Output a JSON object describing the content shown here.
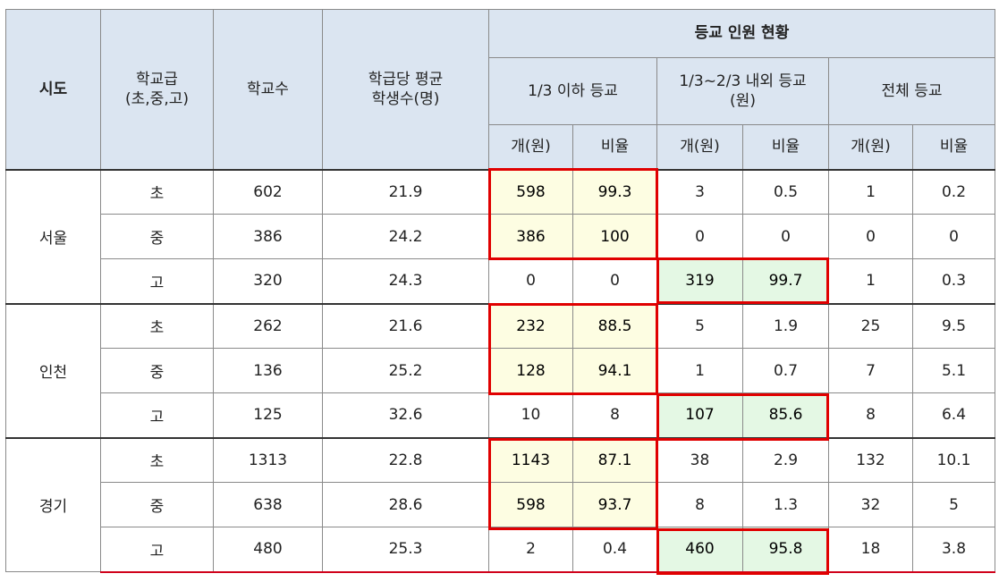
{
  "header": {
    "sido": "시도",
    "school_level": "학교급\n(초,중,고)",
    "school_count": "학교수",
    "avg_students": "학급당 평균\n학생수(명)",
    "attendance_status": "등교 인원 현황",
    "group_1": "1/3 이하 등교",
    "group_2": "1/3~2/3 내외 등교\n(원)",
    "group_3": "전체 등교",
    "sub_count": "개(원)",
    "sub_ratio": "비율"
  },
  "rows": [
    {
      "region": "서울",
      "level": "초",
      "schools": "602",
      "avg": "21.9",
      "c1": "598",
      "r1": "99.3",
      "c2": "3",
      "r2": "0.5",
      "c3": "1",
      "r3": "0.2"
    },
    {
      "region": "",
      "level": "중",
      "schools": "386",
      "avg": "24.2",
      "c1": "386",
      "r1": "100",
      "c2": "0",
      "r2": "0",
      "c3": "0",
      "r3": "0"
    },
    {
      "region": "",
      "level": "고",
      "schools": "320",
      "avg": "24.3",
      "c1": "0",
      "r1": "0",
      "c2": "319",
      "r2": "99.7",
      "c3": "1",
      "r3": "0.3"
    },
    {
      "region": "인천",
      "level": "초",
      "schools": "262",
      "avg": "21.6",
      "c1": "232",
      "r1": "88.5",
      "c2": "5",
      "r2": "1.9",
      "c3": "25",
      "r3": "9.5"
    },
    {
      "region": "",
      "level": "중",
      "schools": "136",
      "avg": "25.2",
      "c1": "128",
      "r1": "94.1",
      "c2": "1",
      "r2": "0.7",
      "c3": "7",
      "r3": "5.1"
    },
    {
      "region": "",
      "level": "고",
      "schools": "125",
      "avg": "32.6",
      "c1": "10",
      "r1": "8",
      "c2": "107",
      "r2": "85.6",
      "c3": "8",
      "r3": "6.4"
    },
    {
      "region": "경기",
      "level": "초",
      "schools": "1313",
      "avg": "22.8",
      "c1": "1143",
      "r1": "87.1",
      "c2": "38",
      "r2": "2.9",
      "c3": "132",
      "r3": "10.1"
    },
    {
      "region": "",
      "level": "중",
      "schools": "638",
      "avg": "28.6",
      "c1": "598",
      "r1": "93.7",
      "c2": "8",
      "r2": "1.3",
      "c3": "32",
      "r3": "5"
    },
    {
      "region": "",
      "level": "고",
      "schools": "480",
      "avg": "25.3",
      "c1": "2",
      "r1": "0.4",
      "c2": "460",
      "r2": "95.8",
      "c3": "18",
      "r3": "3.8"
    }
  ],
  "colors": {
    "header_bg": "#dbe5f1",
    "highlight_yellow": "#fdfde2",
    "highlight_green": "#e4f8e4",
    "frame_red": "#e00000"
  }
}
